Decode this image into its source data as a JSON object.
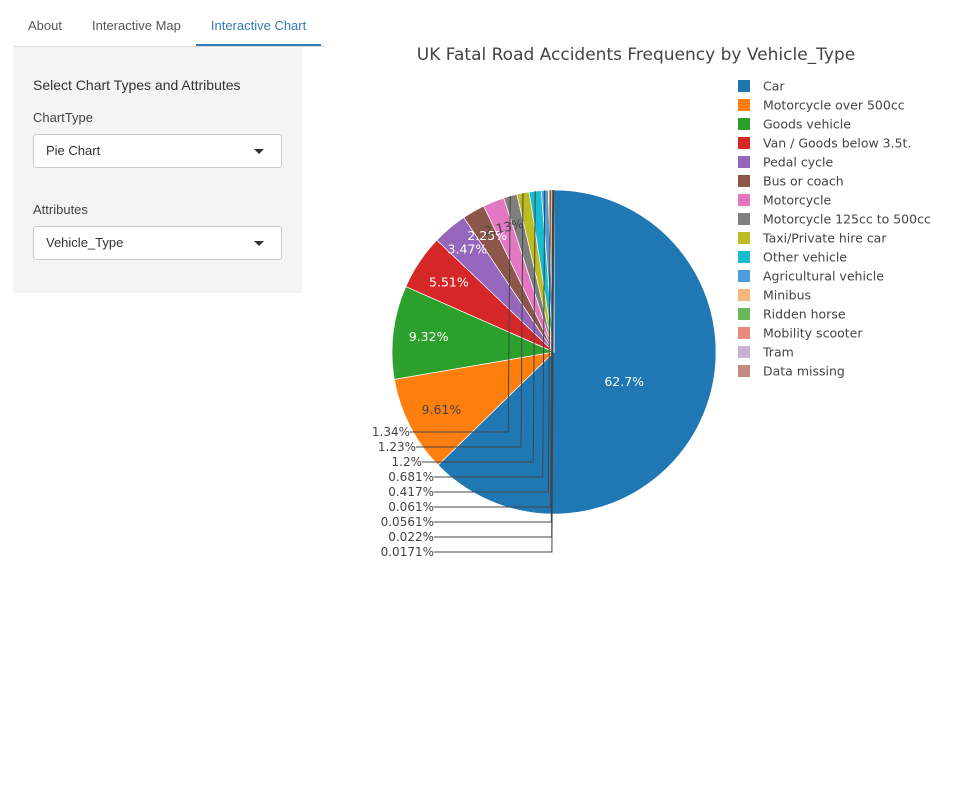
{
  "tabs": [
    {
      "label": "About"
    },
    {
      "label": "Interactive Map"
    },
    {
      "label": "Interactive Chart"
    }
  ],
  "sidebar": {
    "title": "Select Chart Types and Attributes",
    "chart_type": {
      "label": "ChartType",
      "value": "Pie Chart"
    },
    "attributes": {
      "label": "Attributes",
      "value": "Vehicle_Type"
    }
  },
  "chart_data": {
    "type": "pie",
    "title": "UK Fatal Road Accidents Frequency by  Vehicle_Type",
    "legend_position": "right",
    "slices": [
      {
        "name": "Car",
        "value": 62.7,
        "label": "62.7%",
        "color": "#1f77b4"
      },
      {
        "name": "Motorcycle over 500cc",
        "value": 9.61,
        "label": "9.61%",
        "color": "#ff7f0e"
      },
      {
        "name": "Goods vehicle",
        "value": 9.32,
        "label": "9.32%",
        "color": "#2ca02c"
      },
      {
        "name": "Van / Goods below 3.5t.",
        "value": 5.51,
        "label": "5.51%",
        "color": "#d62728"
      },
      {
        "name": "Pedal cycle",
        "value": 3.47,
        "label": "3.47%",
        "color": "#9467bd"
      },
      {
        "name": "Bus or coach",
        "value": 2.25,
        "label": "2.25%",
        "color": "#8c564b"
      },
      {
        "name": "Motorcycle",
        "value": 2.13,
        "label": "2.13%",
        "color": "#e377c2"
      },
      {
        "name": "Motorcycle 125cc to 500cc",
        "value": 1.34,
        "label": "1.34%",
        "color": "#7f7f7f"
      },
      {
        "name": "Taxi/Private hire car",
        "value": 1.23,
        "label": "1.23%",
        "color": "#bcbd22"
      },
      {
        "name": "Other vehicle",
        "value": 1.2,
        "label": "1.2%",
        "color": "#17becf"
      },
      {
        "name": "Agricultural vehicle",
        "value": 0.681,
        "label": "0.681%",
        "color": "#4a9ee0"
      },
      {
        "name": "Minibus",
        "value": 0.417,
        "label": "0.417%",
        "color": "#f5b87a"
      },
      {
        "name": "Ridden horse",
        "value": 0.061,
        "label": "0.061%",
        "color": "#66b956"
      },
      {
        "name": "Mobility scooter",
        "value": 0.0561,
        "label": "0.0561%",
        "color": "#e8897b"
      },
      {
        "name": "Tram",
        "value": 0.022,
        "label": "0.022%",
        "color": "#c9b3d8"
      },
      {
        "name": "Data missing",
        "value": 0.0171,
        "label": "0.0171%",
        "color": "#c48a82"
      }
    ]
  }
}
